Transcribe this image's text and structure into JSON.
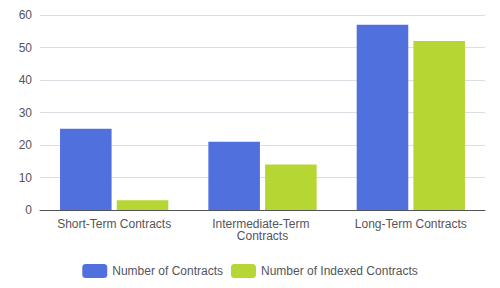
{
  "chart_data": {
    "type": "bar",
    "categories": [
      "Short-Term Contracts",
      "Intermediate-Term Contracts",
      "Long-Term Contracts"
    ],
    "series": [
      {
        "name": "Number of Contracts",
        "values": [
          25,
          21,
          57
        ]
      },
      {
        "name": "Number of Indexed Contracts",
        "values": [
          3,
          14,
          52
        ]
      }
    ],
    "ylim": [
      0,
      60
    ],
    "yticks": [
      0,
      10,
      20,
      30,
      40,
      50,
      60
    ],
    "grid": true,
    "legend": "bottom"
  }
}
